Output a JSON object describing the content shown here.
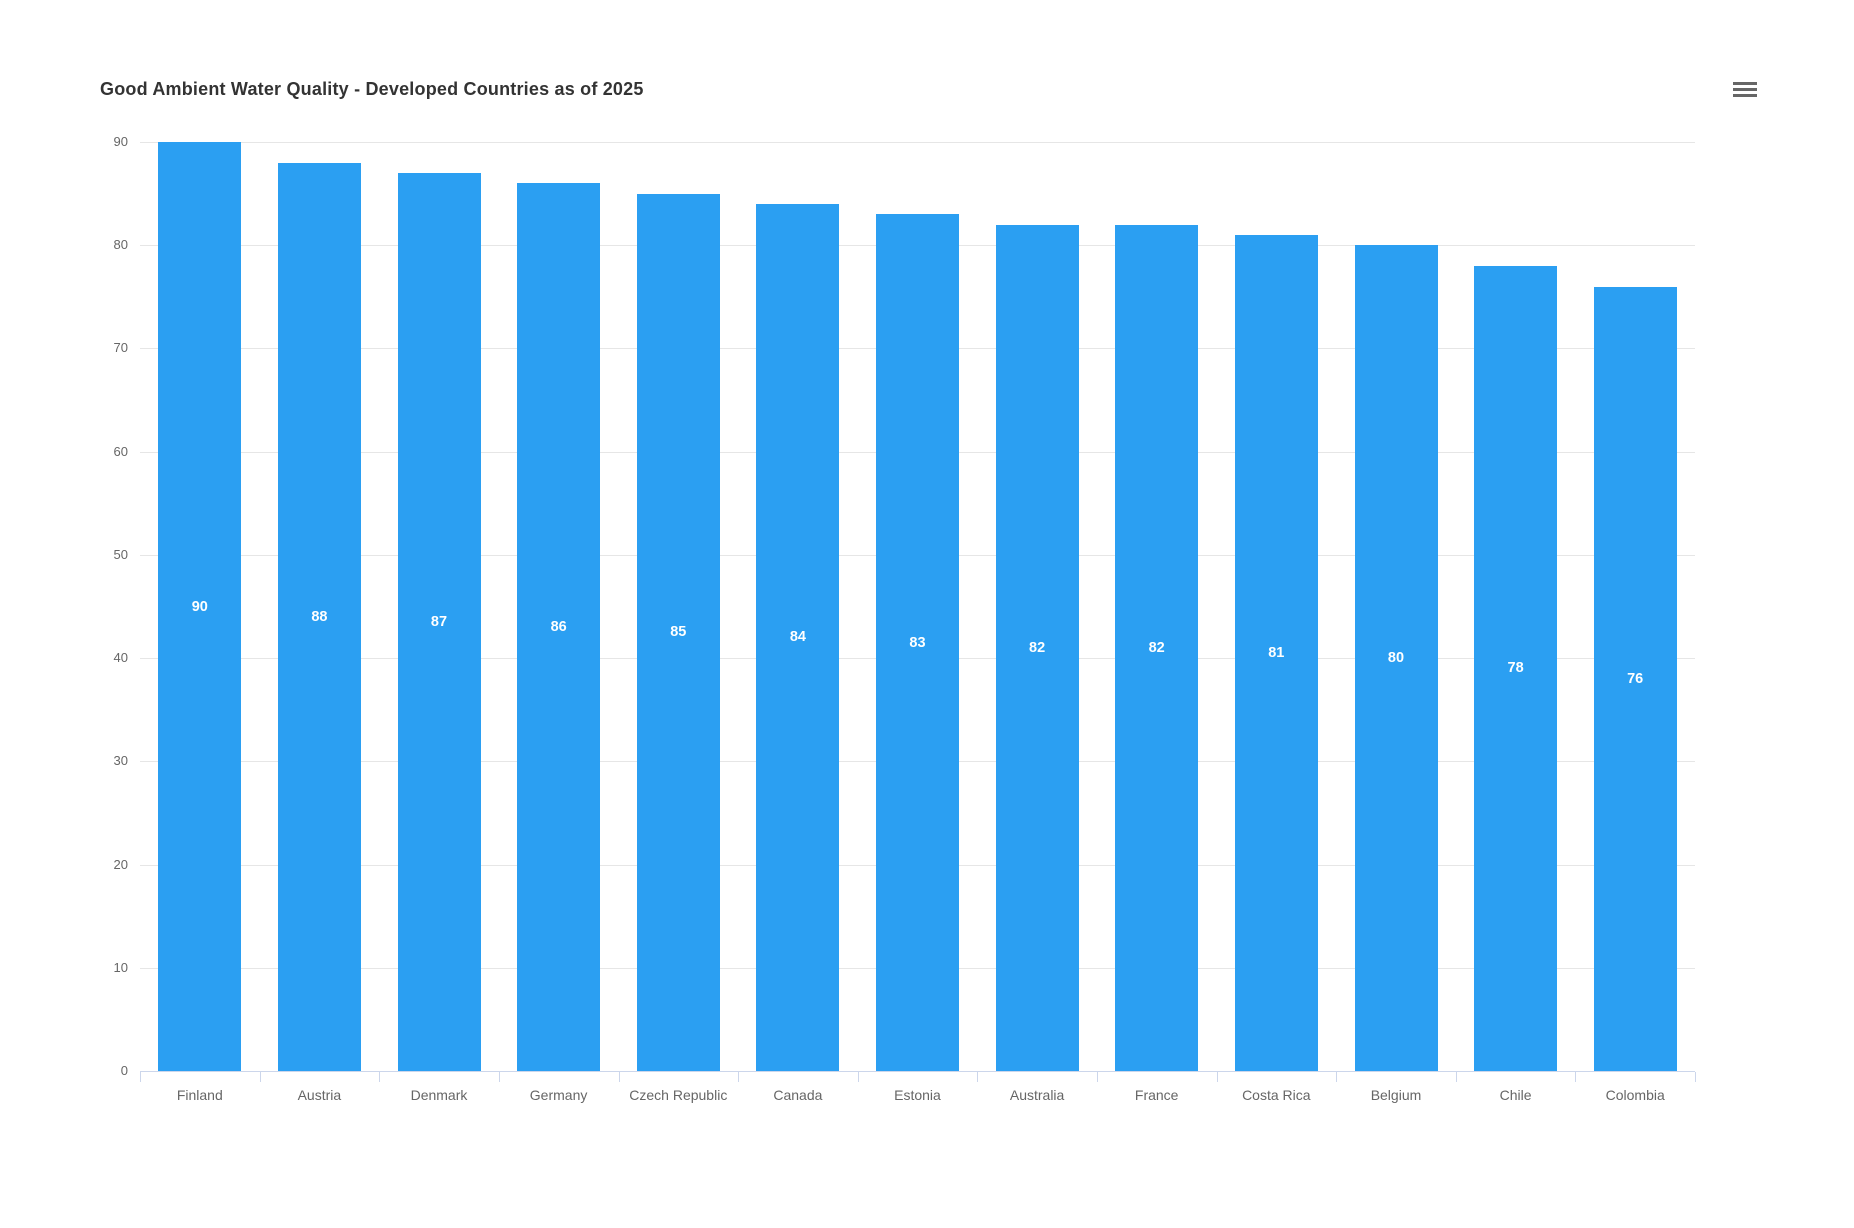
{
  "header": {
    "title": "Good Ambient Water Quality - Developed Countries as of 2025",
    "menu_tooltip": "Chart context menu"
  },
  "chart_data": {
    "type": "bar",
    "title": "Good Ambient Water Quality - Developed Countries as of 2025",
    "categories": [
      "Finland",
      "Austria",
      "Denmark",
      "Germany",
      "Czech Republic",
      "Canada",
      "Estonia",
      "Australia",
      "France",
      "Costa Rica",
      "Belgium",
      "Chile",
      "Colombia"
    ],
    "values": [
      90,
      88,
      87,
      86,
      85,
      84,
      83,
      82,
      82,
      81,
      80,
      78,
      76
    ],
    "xlabel": "",
    "ylabel": "",
    "ylim": [
      0,
      90
    ],
    "yticks": [
      0,
      10,
      20,
      30,
      40,
      50,
      60,
      70,
      80,
      90
    ],
    "grid": true,
    "legend": "none",
    "data_labels": "value shown in white at vertical center of each bar",
    "colors": {
      "bar": "#2B9FF2",
      "data_label_text": "#FFFFFF",
      "title_text": "#333333",
      "axis_text": "#666666",
      "gridline": "#E6E6E6",
      "axis_line": "#CCD6EB",
      "menu_icon": "#666666",
      "background": "#FFFFFF"
    }
  }
}
